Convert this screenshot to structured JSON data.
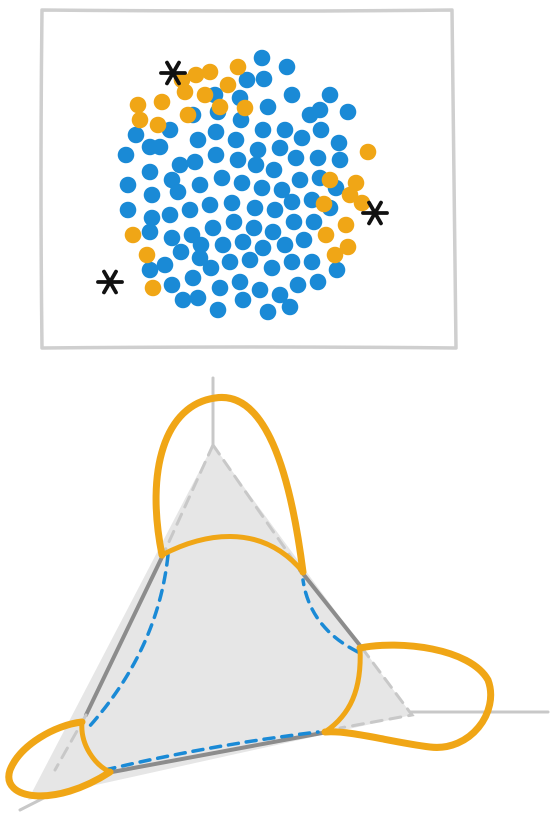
{
  "colors": {
    "blue": "#1a8ad6",
    "orange": "#f0a616",
    "marker": "#111111",
    "frame": "#cfcfcf",
    "axis": "#c8c8c8",
    "triangle_fill": "#e6e6e6",
    "triangle_edge": "#8c8c8c",
    "background": "#ffffff"
  },
  "scatter_panel": {
    "blue_point_count": 103,
    "orange_point_count": 27,
    "star_marker_count": 3,
    "marker_icon": "asterisk-icon"
  },
  "simplex_panel": {
    "axes": [
      "x",
      "y",
      "z"
    ],
    "orange_lobes": 3,
    "blue_dashed_boundary": true
  }
}
